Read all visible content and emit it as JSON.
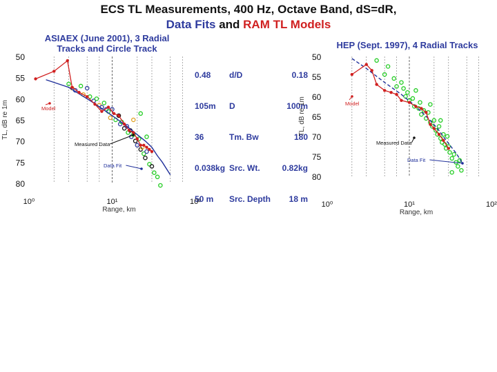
{
  "title": {
    "line1": "ECS TL Measurements, 400 Hz, Octave Band, dS=dR,",
    "line2_data_fits": "Data Fits",
    "line2_and": "and",
    "line2_ram": "RAM TL Models"
  },
  "params": {
    "col1": [
      "0.48",
      "105m",
      "36",
      "0.038kg",
      "50 m"
    ],
    "col2": [
      "d/D",
      "D",
      "Tm. Bw",
      "Src. Wt.",
      "Src. Depth"
    ],
    "col3": [
      "0.18",
      "100m",
      "180",
      "0.82kg",
      "18 m"
    ]
  },
  "colors": {
    "title_blue": "#2e3b9e",
    "model_red": "#d02020",
    "fit_blue": "#1f2f9a",
    "data_green": "#22cc22",
    "grid_gray": "#888888"
  },
  "chart_data": [
    {
      "type": "scatter",
      "title": "ASIAEX (June 2001), 3 Radial Tracks and Circle Track",
      "xlabel": "Range, km",
      "ylabel": "TL, dB re 1m",
      "xscale": "log",
      "xlim": [
        1,
        100
      ],
      "ylim": [
        50,
        80
      ],
      "y_inverted": true,
      "x_ticks": [
        "10⁰",
        "10¹",
        "10²"
      ],
      "y_ticks": [
        "50",
        "55",
        "60",
        "65",
        "70",
        "75",
        "80"
      ],
      "annotations": [
        "Model",
        "Measured Data",
        "Data Fit"
      ],
      "series": [
        {
          "name": "Model",
          "style": "red line with markers",
          "x": [
            1.2,
            2.0,
            2.9,
            3.3,
            4.0,
            5.0,
            6.2,
            7.5,
            9.0,
            10.5,
            12.0,
            14.0,
            16.0,
            18.0,
            20.0,
            22.0,
            24.0,
            26.0,
            28.0,
            30.0
          ],
          "y": [
            55.3,
            53.5,
            51.0,
            57.3,
            58.5,
            59.5,
            61.3,
            63.0,
            62.0,
            63.5,
            64.0,
            66.0,
            67.5,
            68.0,
            69.5,
            71.0,
            71.0,
            71.5,
            72.0,
            72.5
          ]
        },
        {
          "name": "Data Fit",
          "style": "blue line",
          "x": [
            1.6,
            3.0,
            6.0,
            10.0,
            15.0,
            20.0,
            25.0,
            30.0,
            35.0,
            40.0,
            50.0
          ],
          "y": [
            55.5,
            57.3,
            61.0,
            64.0,
            66.5,
            68.5,
            70.0,
            71.5,
            73.5,
            75.0,
            78.0
          ]
        },
        {
          "name": "Measured Data",
          "style": "multicolor markers",
          "points": [
            {
              "x": 3.0,
              "y": 56.5,
              "c": "#22cc22"
            },
            {
              "x": 3.3,
              "y": 57.5,
              "c": "#e0a020"
            },
            {
              "x": 3.6,
              "y": 58.0,
              "c": "#2e3b9e"
            },
            {
              "x": 4.2,
              "y": 57.0,
              "c": "#22cc22"
            },
            {
              "x": 4.5,
              "y": 59.0,
              "c": "#e0a020"
            },
            {
              "x": 5.0,
              "y": 57.5,
              "c": "#2e3b9e"
            },
            {
              "x": 5.4,
              "y": 59.5,
              "c": "#22cc22"
            },
            {
              "x": 6.0,
              "y": 60.5,
              "c": "#2e3b9e"
            },
            {
              "x": 6.5,
              "y": 60.0,
              "c": "#22cc22"
            },
            {
              "x": 7.0,
              "y": 61.5,
              "c": "#e0a020"
            },
            {
              "x": 7.5,
              "y": 62.0,
              "c": "#2e3b9e"
            },
            {
              "x": 8.0,
              "y": 61.0,
              "c": "#22cc22"
            },
            {
              "x": 8.5,
              "y": 62.5,
              "c": "#2e3b9e"
            },
            {
              "x": 9.0,
              "y": 63.0,
              "c": "#22cc22"
            },
            {
              "x": 9.5,
              "y": 64.5,
              "c": "#e0a020"
            },
            {
              "x": 10.0,
              "y": 62.5,
              "c": "#2e3b9e"
            },
            {
              "x": 11.0,
              "y": 65.0,
              "c": "#22cc22"
            },
            {
              "x": 12.0,
              "y": 64.0,
              "c": "#111111"
            },
            {
              "x": 12.5,
              "y": 66.0,
              "c": "#2e3b9e"
            },
            {
              "x": 13.0,
              "y": 65.5,
              "c": "#22cc22"
            },
            {
              "x": 14.0,
              "y": 67.0,
              "c": "#111111"
            },
            {
              "x": 15.0,
              "y": 66.5,
              "c": "#2e3b9e"
            },
            {
              "x": 15.5,
              "y": 68.0,
              "c": "#22cc22"
            },
            {
              "x": 16.5,
              "y": 67.5,
              "c": "#111111"
            },
            {
              "x": 17.0,
              "y": 69.0,
              "c": "#2e3b9e"
            },
            {
              "x": 18.0,
              "y": 68.5,
              "c": "#22cc22"
            },
            {
              "x": 19.0,
              "y": 70.0,
              "c": "#111111"
            },
            {
              "x": 20.0,
              "y": 71.0,
              "c": "#2e3b9e"
            },
            {
              "x": 21.0,
              "y": 69.5,
              "c": "#22cc22"
            },
            {
              "x": 22.0,
              "y": 72.0,
              "c": "#111111"
            },
            {
              "x": 23.0,
              "y": 71.5,
              "c": "#e0a020"
            },
            {
              "x": 24.0,
              "y": 73.0,
              "c": "#22cc22"
            },
            {
              "x": 25.0,
              "y": 74.0,
              "c": "#111111"
            },
            {
              "x": 26.0,
              "y": 72.5,
              "c": "#2e3b9e"
            },
            {
              "x": 28.0,
              "y": 75.5,
              "c": "#22cc22"
            },
            {
              "x": 30.0,
              "y": 76.0,
              "c": "#111111"
            },
            {
              "x": 32.0,
              "y": 77.5,
              "c": "#22cc22"
            },
            {
              "x": 35.0,
              "y": 78.5,
              "c": "#22cc22"
            },
            {
              "x": 38.0,
              "y": 80.5,
              "c": "#22cc22"
            },
            {
              "x": 22.0,
              "y": 63.5,
              "c": "#22cc22"
            },
            {
              "x": 18.0,
              "y": 65.0,
              "c": "#e0a020"
            },
            {
              "x": 26.0,
              "y": 69.0,
              "c": "#22cc22"
            }
          ]
        }
      ]
    },
    {
      "type": "scatter",
      "title": "HEP (Sept. 1997), 4 Radial Tracks",
      "xlabel": "Range, km",
      "ylabel": "TL, dB re 1m",
      "xscale": "log",
      "xlim": [
        1,
        100
      ],
      "ylim": [
        50,
        80
      ],
      "y_inverted": true,
      "x_ticks": [
        "10⁰",
        "10¹",
        "10²"
      ],
      "y_ticks": [
        "50",
        "55",
        "60",
        "65",
        "70",
        "75",
        "80"
      ],
      "annotations": [
        "Model",
        "Measured Data",
        "Data Fit"
      ],
      "series": [
        {
          "name": "Model",
          "style": "red line with markers",
          "x": [
            2.0,
            3.0,
            3.5,
            4.0,
            5.0,
            6.0,
            7.0,
            8.0,
            10.0,
            12.0,
            14.0,
            16.0,
            18.0,
            20.0,
            23.0,
            26.0,
            30.0
          ],
          "y": [
            54.5,
            52.0,
            53.5,
            57.0,
            58.5,
            59.0,
            59.5,
            61.0,
            61.5,
            62.5,
            63.0,
            64.0,
            67.0,
            68.0,
            69.5,
            71.0,
            73.0
          ]
        },
        {
          "name": "Data Fit",
          "style": "blue dashed line",
          "x": [
            2.0,
            3.0,
            5.0,
            8.0,
            12.0,
            17.0,
            22.0,
            27.0,
            32.0,
            38.0,
            45.0
          ],
          "y": [
            50.5,
            53.0,
            56.5,
            59.5,
            62.5,
            65.5,
            68.0,
            70.5,
            72.5,
            74.5,
            77.0
          ]
        },
        {
          "name": "Measured Data",
          "style": "green markers",
          "points": [
            {
              "x": 4.0,
              "y": 51.0
            },
            {
              "x": 5.5,
              "y": 52.5
            },
            {
              "x": 5.0,
              "y": 54.5
            },
            {
              "x": 6.5,
              "y": 55.5
            },
            {
              "x": 7.0,
              "y": 57.5
            },
            {
              "x": 8.0,
              "y": 56.5
            },
            {
              "x": 8.5,
              "y": 58.0
            },
            {
              "x": 9.0,
              "y": 60.0
            },
            {
              "x": 9.5,
              "y": 59.0
            },
            {
              "x": 10.0,
              "y": 61.0
            },
            {
              "x": 11.0,
              "y": 60.5
            },
            {
              "x": 11.5,
              "y": 62.5
            },
            {
              "x": 12.0,
              "y": 58.5
            },
            {
              "x": 13.0,
              "y": 63.0
            },
            {
              "x": 13.5,
              "y": 61.5
            },
            {
              "x": 14.0,
              "y": 64.5
            },
            {
              "x": 15.0,
              "y": 63.5
            },
            {
              "x": 16.0,
              "y": 65.5
            },
            {
              "x": 17.0,
              "y": 64.0
            },
            {
              "x": 18.0,
              "y": 66.5
            },
            {
              "x": 19.0,
              "y": 67.5
            },
            {
              "x": 20.0,
              "y": 66.0
            },
            {
              "x": 21.0,
              "y": 68.5
            },
            {
              "x": 22.0,
              "y": 69.5
            },
            {
              "x": 23.0,
              "y": 67.5
            },
            {
              "x": 24.0,
              "y": 70.5
            },
            {
              "x": 25.0,
              "y": 71.5
            },
            {
              "x": 26.0,
              "y": 69.5
            },
            {
              "x": 27.0,
              "y": 72.0
            },
            {
              "x": 28.0,
              "y": 73.0
            },
            {
              "x": 30.0,
              "y": 72.5
            },
            {
              "x": 31.0,
              "y": 74.0
            },
            {
              "x": 33.0,
              "y": 75.5
            },
            {
              "x": 35.0,
              "y": 74.5
            },
            {
              "x": 37.0,
              "y": 76.5
            },
            {
              "x": 39.0,
              "y": 77.5
            },
            {
              "x": 41.0,
              "y": 76.0
            },
            {
              "x": 43.0,
              "y": 78.5
            },
            {
              "x": 18.0,
              "y": 62.0
            },
            {
              "x": 24.0,
              "y": 66.0
            },
            {
              "x": 29.0,
              "y": 70.0
            },
            {
              "x": 33.0,
              "y": 79.0
            }
          ]
        }
      ]
    }
  ]
}
